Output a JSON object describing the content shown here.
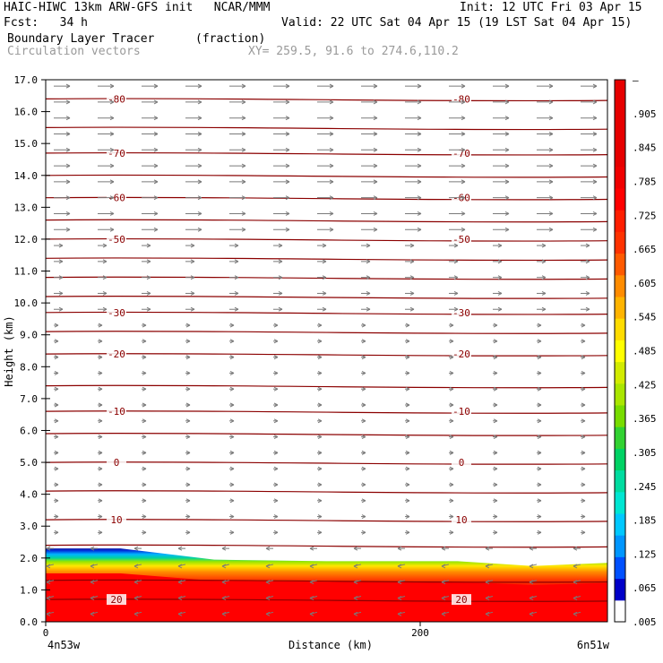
{
  "header": {
    "title": "HAIC-HIWC 13km ARW-GFS init   NCAR/MMM",
    "init": "Init: 12 UTC Fri 03 Apr 15",
    "fcst": "Fcst:   34 h",
    "valid": "Valid: 22 UTC Sat 04 Apr 15 (19 LST Sat 04 Apr 15)",
    "field": "Boundary Layer Tracer",
    "units": "(fraction)",
    "vectors": "Circulation vectors",
    "xy": "XY= 259.5, 91.6 to 274.6,110.2"
  },
  "chart_data": {
    "type": "cross-section",
    "ylabel": "Height (km)",
    "xlabel": "Distance (km)",
    "ylim": [
      0,
      17
    ],
    "xlim": [
      0,
      300
    ],
    "y_ticks": [
      "0.0",
      "1.0",
      "2.0",
      "3.0",
      "4.0",
      "5.0",
      "6.0",
      "7.0",
      "8.0",
      "9.0",
      "10.0",
      "11.0",
      "12.0",
      "13.0",
      "14.0",
      "15.0",
      "16.0",
      "17.0"
    ],
    "x_ticks": [
      {
        "value": 0,
        "label": "0"
      },
      {
        "value": 200,
        "label": "200"
      }
    ],
    "x_endpoints": {
      "left": "4n53w",
      "right": "6n51w"
    },
    "temperature_contours": [
      {
        "label": "-80",
        "height_km": 16.4
      },
      {
        "label": "-70",
        "height_km": 14.7
      },
      {
        "label": "-60",
        "height_km": 13.3
      },
      {
        "label": "-50",
        "height_km": 12.0
      },
      {
        "label": "-30",
        "height_km": 9.7
      },
      {
        "label": "-20",
        "height_km": 8.4
      },
      {
        "label": "-10",
        "height_km": 6.6
      },
      {
        "label": "0",
        "height_km": 5.0
      },
      {
        "label": "10",
        "height_km": 3.2
      },
      {
        "label": "20",
        "height_km": 0.7
      }
    ],
    "tracer_top_km": [
      [
        0,
        2.3
      ],
      [
        40,
        2.3
      ],
      [
        90,
        1.95
      ],
      [
        150,
        1.9
      ],
      [
        220,
        1.9
      ],
      [
        260,
        1.75
      ],
      [
        300,
        1.85
      ]
    ],
    "colorbar": {
      "labels": [
        "–",
        ".905",
        ".845",
        ".785",
        ".725",
        ".665",
        ".605",
        ".545",
        ".485",
        ".425",
        ".365",
        ".305",
        ".245",
        ".185",
        ".125",
        ".065",
        ".005"
      ],
      "colors": [
        "#ffffff",
        "#0000c8",
        "#0050ff",
        "#0096ff",
        "#00c8ff",
        "#00e6d2",
        "#00dca0",
        "#00d264",
        "#32d232",
        "#78dc00",
        "#aae600",
        "#d2eb00",
        "#ffff00",
        "#ffdc00",
        "#ffb400",
        "#ff8c00",
        "#ff5a00",
        "#ff3200",
        "#ff1e00",
        "#ff0000",
        "#f00000",
        "#e60000",
        "#e60000",
        "#e60000",
        "#e60000"
      ]
    }
  }
}
